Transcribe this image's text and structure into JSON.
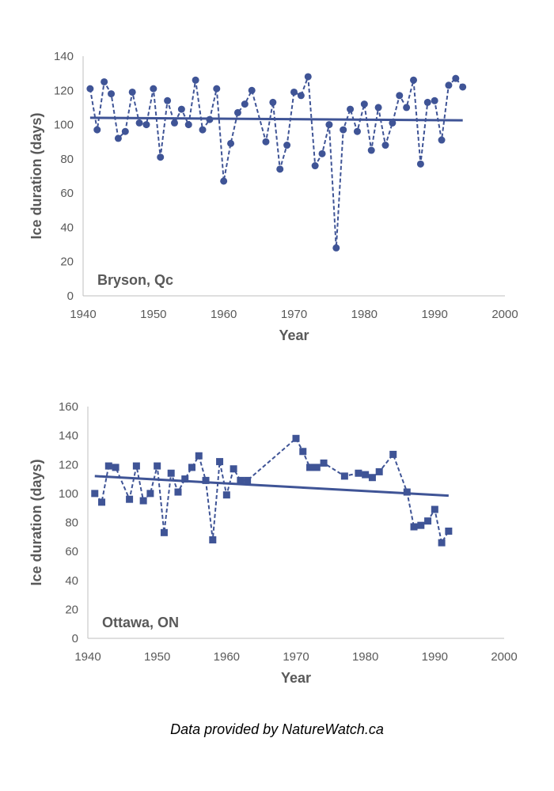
{
  "colors": {
    "series": "#3F5496",
    "axis": "#BFBFBF",
    "text": "#595959"
  },
  "credit": "Data provided by NatureWatch.ca",
  "chart_data": [
    {
      "type": "line",
      "station": "Bryson, Qc",
      "xlabel": "Year",
      "ylabel": "Ice duration (days)",
      "xlim": [
        1940,
        2000
      ],
      "ylim": [
        0,
        140
      ],
      "xticks": [
        1940,
        1950,
        1960,
        1970,
        1980,
        1990,
        2000
      ],
      "yticks": [
        0,
        20,
        40,
        60,
        80,
        100,
        120,
        140
      ],
      "marker": "circle",
      "grid": false,
      "x": [
        1941,
        1942,
        1943,
        1944,
        1945,
        1946,
        1947,
        1948,
        1949,
        1950,
        1951,
        1952,
        1953,
        1954,
        1955,
        1956,
        1957,
        1958,
        1959,
        1960,
        1961,
        1962,
        1963,
        1964,
        1966,
        1967,
        1968,
        1969,
        1970,
        1971,
        1972,
        1973,
        1974,
        1975,
        1976,
        1977,
        1978,
        1979,
        1980,
        1981,
        1982,
        1983,
        1984,
        1985,
        1986,
        1987,
        1988,
        1989,
        1990,
        1991,
        1992,
        1993,
        1994
      ],
      "y": [
        121,
        97,
        125,
        118,
        92,
        96,
        119,
        101,
        100,
        121,
        81,
        114,
        101,
        109,
        100,
        126,
        97,
        103,
        121,
        67,
        89,
        107,
        112,
        120,
        90,
        113,
        74,
        88,
        119,
        117,
        128,
        76,
        83,
        100,
        28,
        97,
        109,
        96,
        112,
        85,
        110,
        88,
        101,
        117,
        110,
        126,
        77,
        113,
        114,
        91,
        123,
        127,
        122
      ],
      "trend": {
        "x": [
          1941,
          1994
        ],
        "y": [
          104,
          102.5
        ]
      }
    },
    {
      "type": "line",
      "station": "Ottawa, ON",
      "xlabel": "Year",
      "ylabel": "Ice duration (days)",
      "xlim": [
        1940,
        2000
      ],
      "ylim": [
        0,
        160
      ],
      "xticks": [
        1940,
        1950,
        1960,
        1970,
        1980,
        1990,
        2000
      ],
      "yticks": [
        0,
        20,
        40,
        60,
        80,
        100,
        120,
        140,
        160
      ],
      "marker": "square",
      "grid": false,
      "x": [
        1941,
        1942,
        1943,
        1944,
        1946,
        1947,
        1948,
        1949,
        1950,
        1951,
        1952,
        1953,
        1954,
        1955,
        1956,
        1957,
        1958,
        1959,
        1960,
        1961,
        1962,
        1963,
        1970,
        1971,
        1972,
        1973,
        1974,
        1977,
        1979,
        1980,
        1981,
        1982,
        1984,
        1986,
        1987,
        1988,
        1989,
        1990,
        1991,
        1992
      ],
      "y": [
        100,
        94,
        119,
        118,
        96,
        119,
        95,
        100,
        119,
        73,
        114,
        101,
        110,
        118,
        126,
        109,
        68,
        122,
        99,
        117,
        109,
        109,
        138,
        129,
        118,
        118,
        121,
        112,
        114,
        113,
        111,
        115,
        127,
        101,
        77,
        78,
        81,
        89,
        66,
        74
      ],
      "trend": {
        "x": [
          1941,
          1992
        ],
        "y": [
          112,
          98.5
        ]
      }
    }
  ]
}
